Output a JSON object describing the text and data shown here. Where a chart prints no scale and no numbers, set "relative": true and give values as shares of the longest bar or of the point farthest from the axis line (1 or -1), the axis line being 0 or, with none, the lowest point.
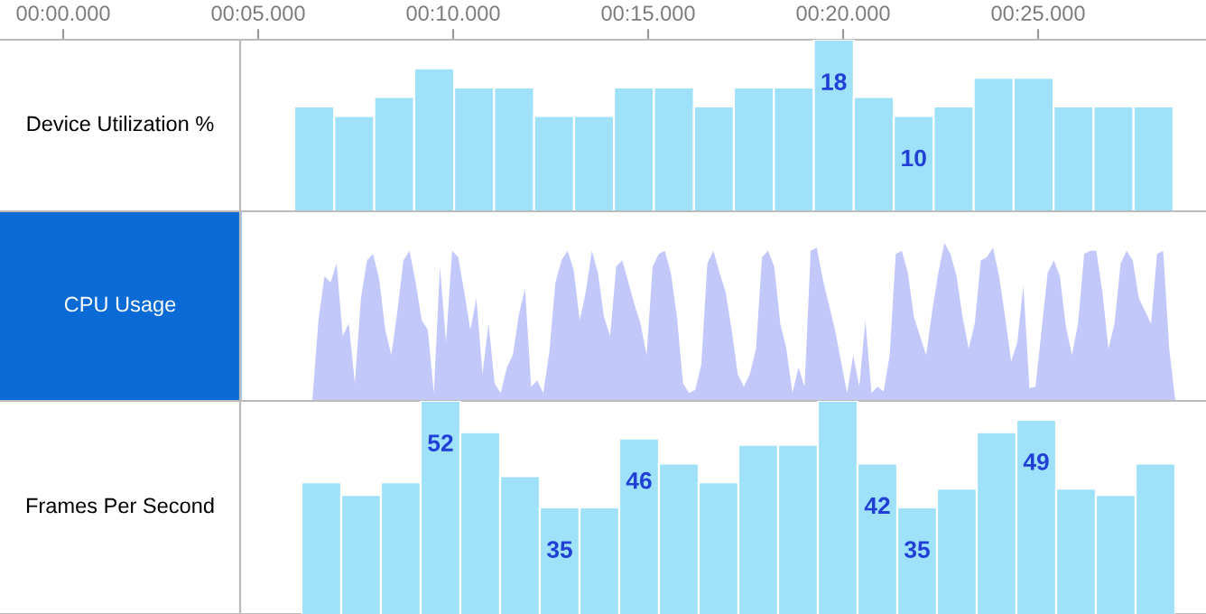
{
  "chart_data": [
    {
      "type": "other",
      "annotations": [
        "00:00.000",
        "00:05.000",
        "00:10.000",
        "00:15.000",
        "00:20.000",
        "00:25.000"
      ]
    },
    {
      "type": "bar",
      "ylabel": "Device Utilization %",
      "color": "#a0e1fa",
      "categories": [
        null,
        null,
        null,
        null,
        null,
        null,
        null,
        null,
        null,
        null,
        null,
        null,
        null,
        null,
        null,
        null,
        null,
        null,
        null,
        null,
        null,
        null
      ],
      "values": [
        11,
        10,
        12,
        15,
        13,
        13,
        10,
        10,
        13,
        13,
        11,
        13,
        13,
        18,
        12,
        10,
        11,
        14,
        14,
        11,
        11,
        11
      ],
      "value_labels": [
        null,
        null,
        null,
        null,
        null,
        null,
        null,
        null,
        null,
        null,
        null,
        null,
        null,
        "18",
        null,
        "10",
        null,
        null,
        null,
        null,
        null,
        null
      ],
      "ylim": [
        0,
        18
      ],
      "tick_labels": false
    },
    {
      "type": "area",
      "ylabel": "CPU Usage",
      "color": "#c3c8fa",
      "relative": true,
      "tick_labels": false,
      "categories": [
        null,
        null,
        null,
        null,
        null,
        null,
        null,
        null,
        null,
        null,
        null,
        null,
        null,
        null,
        null,
        null,
        null,
        null,
        null,
        null,
        null,
        null,
        null,
        null,
        null,
        null,
        null,
        null,
        null,
        null,
        null,
        null,
        null,
        null,
        null,
        null,
        null,
        null,
        null,
        null,
        null,
        null,
        null,
        null,
        null,
        null,
        null,
        null,
        null,
        null,
        null,
        null,
        null,
        null,
        null,
        null,
        null,
        null,
        null,
        null,
        null,
        null,
        null,
        null,
        null,
        null,
        null,
        null,
        null,
        null,
        null,
        null,
        null,
        null,
        null,
        null,
        null,
        null,
        null,
        null,
        null,
        null,
        null,
        null,
        null,
        null,
        null,
        null,
        null,
        null,
        null,
        null,
        null,
        null,
        null,
        null,
        null,
        null,
        null,
        null,
        null,
        null,
        null,
        null,
        null,
        null,
        null,
        null,
        null,
        null,
        null,
        null,
        null,
        null,
        null,
        null,
        null,
        null,
        null,
        null,
        null,
        null,
        null,
        null,
        null,
        null,
        null,
        null,
        null,
        null,
        null,
        null,
        null,
        null,
        null,
        null,
        null,
        null,
        null,
        null,
        null,
        null,
        null
      ],
      "values": [
        0,
        0.51,
        0.79,
        0.75,
        0.87,
        0.41,
        0.49,
        0.11,
        0.65,
        0.89,
        0.93,
        0.77,
        0.45,
        0.29,
        0.57,
        0.89,
        0.95,
        0.75,
        0.51,
        0.45,
        0.05,
        0.85,
        0.37,
        0.95,
        0.91,
        0.69,
        0.45,
        0.65,
        0.17,
        0.49,
        0.11,
        0.05,
        0.21,
        0.29,
        0.55,
        0.71,
        0.09,
        0.13,
        0.05,
        0.31,
        0.75,
        0.89,
        0.95,
        0.83,
        0.51,
        0.69,
        0.95,
        0.81,
        0.53,
        0.41,
        0.85,
        0.89,
        0.75,
        0.61,
        0.49,
        0.29,
        0.85,
        0.93,
        0.95,
        0.81,
        0.53,
        0.11,
        0.05,
        0.07,
        0.23,
        0.87,
        0.95,
        0.81,
        0.69,
        0.45,
        0.17,
        0.09,
        0.17,
        0.33,
        0.91,
        0.95,
        0.85,
        0.49,
        0.33,
        0.05,
        0.21,
        0.09,
        0.95,
        0.97,
        0.77,
        0.61,
        0.45,
        0.25,
        0.05,
        0.29,
        0.09,
        0.51,
        0.05,
        0.09,
        0.06,
        0.29,
        0.93,
        0.95,
        0.81,
        0.53,
        0.41,
        0.29,
        0.57,
        0.81,
        1.0,
        0.93,
        0.79,
        0.53,
        0.33,
        0.49,
        0.89,
        0.91,
        0.97,
        0.79,
        0.53,
        0.25,
        0.37,
        0.73,
        0.08,
        0.09,
        0.45,
        0.81,
        0.89,
        0.79,
        0.47,
        0.29,
        0.49,
        0.93,
        0.95,
        0.95,
        0.69,
        0.33,
        0.49,
        0.87,
        0.95,
        0.89,
        0.65,
        0.57,
        0.49,
        0.93,
        0.95,
        0.33,
        0
      ]
    },
    {
      "type": "bar",
      "ylabel": "Frames Per Second",
      "color": "#a0e1fa",
      "categories": [
        null,
        null,
        null,
        null,
        null,
        null,
        null,
        null,
        null,
        null,
        null,
        null,
        null,
        null,
        null,
        null,
        null,
        null,
        null,
        null,
        null,
        null
      ],
      "values": [
        39,
        37,
        39,
        52,
        47,
        40,
        35,
        35,
        46,
        42,
        39,
        45,
        45,
        52,
        42,
        35,
        38,
        47,
        49,
        38,
        37,
        42
      ],
      "value_labels": [
        null,
        null,
        null,
        "52",
        null,
        null,
        "35",
        null,
        "46",
        null,
        null,
        null,
        null,
        null,
        "42",
        "35",
        null,
        null,
        "49",
        null,
        null,
        null
      ],
      "ylim": [
        18,
        52
      ],
      "tick_labels": false
    }
  ]
}
